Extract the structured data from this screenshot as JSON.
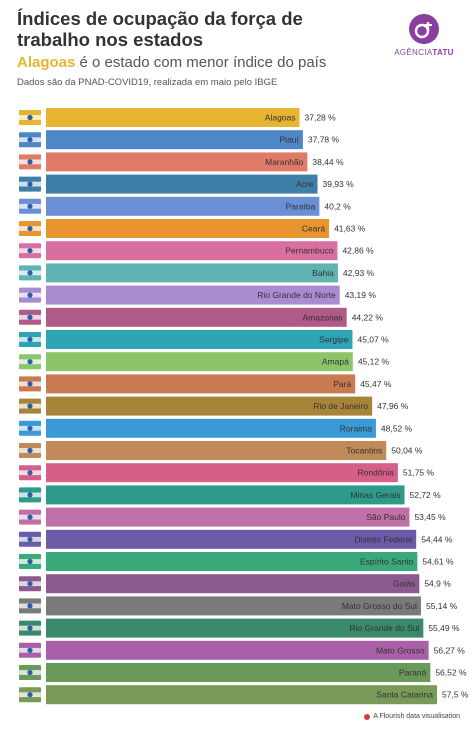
{
  "header": {
    "title": "Índices de ocupação da força de trabalho nos estados",
    "subtitle_highlight": "Alagoas",
    "subtitle_rest": " é o estado com menor índice do país",
    "source": "Dados são da PNAD-COVID19, realizada em maio pelo IBGE"
  },
  "logo": {
    "text_light": "AGÊNCIA",
    "text_bold": "TATU",
    "icon": "agencia-tatu-logo-icon"
  },
  "footer": {
    "label": "A Flourish data visualisation"
  },
  "chart_data": {
    "type": "bar",
    "orientation": "horizontal",
    "value_suffix": " %",
    "xlim": [
      0,
      100
    ],
    "categories": [
      "Alagoas",
      "Piauí",
      "Maranhão",
      "Acre",
      "Paraíba",
      "Ceará",
      "Pernambuco",
      "Bahia",
      "Rio Grande do Norte",
      "Amazonas",
      "Sergipe",
      "Amapá",
      "Pará",
      "Rio de Janeiro",
      "Roraima",
      "Tocantins",
      "Rondônia",
      "Minas Gerais",
      "São Paulo",
      "Distrito Federal",
      "Espírito Santo",
      "Goiás",
      "Mato Grosso do Sul",
      "Rio Grande do Sul",
      "Mato Grosso",
      "Paraná",
      "Santa Catarina"
    ],
    "values": [
      37.28,
      37.78,
      38.44,
      39.93,
      40.2,
      41.63,
      42.86,
      42.93,
      43.19,
      44.22,
      45.07,
      45.12,
      45.47,
      47.96,
      48.52,
      50.04,
      51.75,
      52.72,
      53.45,
      54.44,
      54.61,
      54.9,
      55.14,
      55.49,
      56.27,
      56.52,
      57.5
    ],
    "value_labels": [
      "37,28 %",
      "37,78 %",
      "38,44 %",
      "39,93 %",
      "40,2 %",
      "41,63 %",
      "42,86 %",
      "42,93 %",
      "43,19 %",
      "44,22 %",
      "45,07 %",
      "45,12 %",
      "45,47 %",
      "47,96 %",
      "48,52 %",
      "50,04 %",
      "51,75 %",
      "52,72 %",
      "53,45 %",
      "54,44 %",
      "54,61 %",
      "54,9 %",
      "55,14 %",
      "55,49 %",
      "56,27 %",
      "56,52 %",
      "57,5 %"
    ],
    "colors": [
      "#e8b531",
      "#4f86c6",
      "#e07b6a",
      "#3d7fa6",
      "#6a8fd6",
      "#e8952f",
      "#d86fa0",
      "#5fb3b3",
      "#a98bd1",
      "#b05a8a",
      "#2ea5b5",
      "#8cc46a",
      "#c97a50",
      "#a8843a",
      "#3a9ad8",
      "#c08a5a",
      "#d65f8a",
      "#2e9a8a",
      "#c070a8",
      "#6a5aa8",
      "#3aaa7a",
      "#8a5a90",
      "#7a7a7a",
      "#3a8a6a",
      "#a860a8",
      "#6a9a5a",
      "#7a9a5a"
    ],
    "flag_icons": [
      "flag-alagoas-icon",
      "flag-piaui-icon",
      "flag-maranhao-icon",
      "flag-acre-icon",
      "flag-paraiba-icon",
      "flag-ceara-icon",
      "flag-pernambuco-icon",
      "flag-bahia-icon",
      "flag-rio-grande-do-norte-icon",
      "flag-amazonas-icon",
      "flag-sergipe-icon",
      "flag-amapa-icon",
      "flag-para-icon",
      "flag-rio-de-janeiro-icon",
      "flag-roraima-icon",
      "flag-tocantins-icon",
      "flag-rondonia-icon",
      "flag-minas-gerais-icon",
      "flag-sao-paulo-icon",
      "flag-distrito-federal-icon",
      "flag-espirito-santo-icon",
      "flag-goias-icon",
      "flag-mato-grosso-do-sul-icon",
      "flag-rio-grande-do-sul-icon",
      "flag-mato-grosso-icon",
      "flag-parana-icon",
      "flag-santa-catarina-icon"
    ]
  }
}
